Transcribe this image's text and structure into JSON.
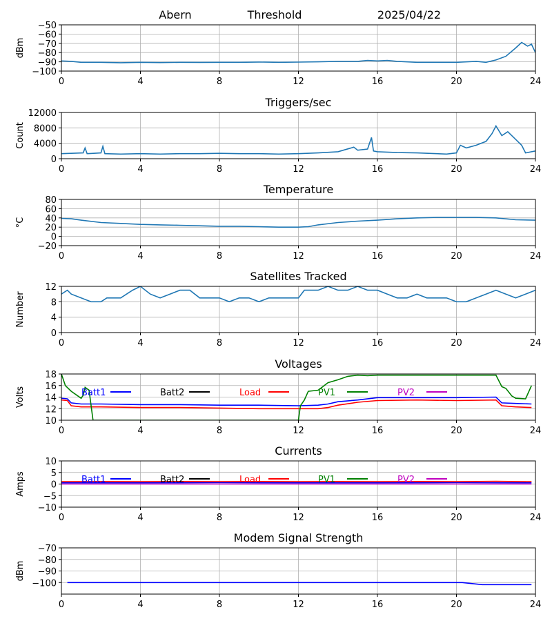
{
  "header": {
    "station": "Abern",
    "label": "Threshold",
    "date": "2025/04/22"
  },
  "chart_data": [
    {
      "type": "line",
      "title": "",
      "ylabel": "dBm",
      "xlim": [
        0,
        24
      ],
      "ylim": [
        -100,
        -50
      ],
      "xticks": [
        0,
        4,
        8,
        12,
        16,
        20,
        24
      ],
      "yticks": [
        -100,
        -90,
        -80,
        -70,
        -60,
        -50
      ],
      "grid": true,
      "series": [
        {
          "color": "#1f77b4",
          "x": [
            0,
            0.5,
            1,
            2,
            3,
            4,
            5,
            6,
            7,
            8,
            9,
            10,
            11,
            12,
            13,
            14,
            15,
            15.5,
            16,
            16.5,
            17,
            18,
            19,
            20,
            21,
            21.5,
            22,
            22.5,
            23,
            23.3,
            23.6,
            23.8,
            24
          ],
          "y": [
            -89,
            -89.5,
            -90.5,
            -90.5,
            -91,
            -90.5,
            -90.8,
            -90.5,
            -90.6,
            -90.5,
            -90.5,
            -90.2,
            -90.5,
            -90.3,
            -90,
            -89.5,
            -89.5,
            -88.5,
            -89,
            -88.5,
            -89.5,
            -90.5,
            -90.5,
            -90.5,
            -89.5,
            -90.5,
            -88,
            -84,
            -75,
            -69,
            -73,
            -71,
            -80
          ]
        }
      ]
    },
    {
      "type": "line",
      "title": "Triggers/sec",
      "ylabel": "Count",
      "xlim": [
        0,
        24
      ],
      "ylim": [
        0,
        12000
      ],
      "xticks": [
        0,
        4,
        8,
        12,
        16,
        20,
        24
      ],
      "yticks": [
        0,
        4000,
        8000,
        12000
      ],
      "grid": true,
      "series": [
        {
          "color": "#1f77b4",
          "x": [
            0,
            0.5,
            1.1,
            1.2,
            1.3,
            2,
            2.1,
            2.2,
            3,
            4,
            5,
            6,
            7,
            8,
            9,
            10,
            11,
            12,
            13,
            14,
            14.8,
            15,
            15.5,
            15.7,
            15.8,
            16,
            17,
            18,
            19,
            19.5,
            20,
            20.2,
            20.5,
            21,
            21.5,
            21.8,
            22,
            22.3,
            22.6,
            23,
            23.3,
            23.5,
            24
          ],
          "y": [
            1300,
            1400,
            1500,
            2800,
            1300,
            1500,
            3200,
            1300,
            1200,
            1300,
            1200,
            1300,
            1300,
            1400,
            1300,
            1300,
            1200,
            1300,
            1500,
            1800,
            3000,
            2200,
            2500,
            5500,
            2000,
            1800,
            1600,
            1500,
            1300,
            1200,
            1500,
            3500,
            2800,
            3500,
            4500,
            6500,
            8500,
            6000,
            7000,
            5000,
            3500,
            1500,
            2000
          ]
        }
      ]
    },
    {
      "type": "line",
      "title": "Temperature",
      "ylabel": "°C",
      "xlim": [
        0,
        24
      ],
      "ylim": [
        -20,
        80
      ],
      "xticks": [
        0,
        4,
        8,
        12,
        16,
        20,
        24
      ],
      "yticks": [
        -20,
        0,
        20,
        40,
        60,
        80
      ],
      "grid": true,
      "series": [
        {
          "color": "#1f77b4",
          "x": [
            0,
            0.5,
            1,
            2,
            3,
            4,
            5,
            6,
            7,
            8,
            9,
            10,
            11,
            12,
            12.5,
            13,
            14,
            15,
            16,
            17,
            18,
            19,
            20,
            21,
            22,
            23,
            24
          ],
          "y": [
            39,
            38,
            35,
            30,
            28,
            26,
            25,
            24,
            23,
            22,
            22,
            21,
            20,
            20,
            21,
            25,
            30,
            33,
            35,
            38,
            40,
            41,
            41,
            41,
            40,
            36,
            35
          ]
        }
      ]
    },
    {
      "type": "line",
      "title": "Satellites Tracked",
      "ylabel": "Number",
      "xlim": [
        0,
        24
      ],
      "ylim": [
        0,
        12
      ],
      "xticks": [
        0,
        4,
        8,
        12,
        16,
        20,
        24
      ],
      "yticks": [
        0,
        4,
        8,
        12
      ],
      "grid": true,
      "series": [
        {
          "color": "#1f77b4",
          "x": [
            0,
            0.3,
            0.5,
            1,
            1.5,
            2,
            2.3,
            3,
            3.3,
            3.6,
            4,
            4.5,
            5,
            5.5,
            6,
            6.5,
            7,
            7.5,
            8,
            8.5,
            9,
            9.5,
            10,
            10.5,
            11,
            11.5,
            12,
            12.3,
            13,
            13.5,
            14,
            14.5,
            15,
            15.5,
            16,
            16.5,
            17,
            17.5,
            18,
            18.5,
            19,
            19.5,
            20,
            20.5,
            21,
            21.5,
            22,
            22.5,
            23,
            23.5,
            24
          ],
          "y": [
            10,
            11,
            10,
            9,
            8,
            8,
            9,
            9,
            10,
            11,
            12,
            10,
            9,
            10,
            11,
            11,
            9,
            9,
            9,
            8,
            9,
            9,
            8,
            9,
            9,
            9,
            9,
            11,
            11,
            12,
            11,
            11,
            12,
            11,
            11,
            10,
            9,
            9,
            10,
            9,
            9,
            9,
            8,
            8,
            9,
            10,
            11,
            10,
            9,
            10,
            11
          ]
        }
      ]
    },
    {
      "type": "line",
      "title": "Voltages",
      "ylabel": "Volts",
      "xlim": [
        0,
        24
      ],
      "ylim": [
        10,
        18
      ],
      "xticks": [
        0,
        4,
        8,
        12,
        16,
        20,
        24
      ],
      "yticks": [
        10,
        12,
        14,
        16,
        18
      ],
      "grid": true,
      "legend": "top",
      "series": [
        {
          "name": "Batt1",
          "color": "#0000ff",
          "x": [
            0,
            0.3,
            0.5,
            1,
            2,
            4,
            6,
            8,
            10,
            12,
            13,
            13.5,
            14,
            15,
            16,
            18,
            20,
            22,
            22.3,
            23,
            23.8
          ],
          "y": [
            13.8,
            13.7,
            13.0,
            12.8,
            12.8,
            12.7,
            12.7,
            12.6,
            12.6,
            12.5,
            12.6,
            12.8,
            13.2,
            13.5,
            13.9,
            13.9,
            13.9,
            14.0,
            13.0,
            12.9,
            12.8
          ]
        },
        {
          "name": "Batt2",
          "color": "#000000",
          "x": [],
          "y": []
        },
        {
          "name": "Load",
          "color": "#ff0000",
          "x": [
            0,
            0.3,
            0.5,
            1,
            2,
            4,
            6,
            8,
            10,
            12,
            13,
            13.5,
            14,
            15,
            16,
            18,
            20,
            22,
            22.3,
            23,
            23.8
          ],
          "y": [
            13.5,
            13.4,
            12.5,
            12.3,
            12.3,
            12.2,
            12.2,
            12.1,
            12.0,
            12.0,
            12.0,
            12.2,
            12.6,
            13.1,
            13.4,
            13.5,
            13.4,
            13.5,
            12.5,
            12.3,
            12.2
          ]
        },
        {
          "name": "PV1",
          "color": "#008000",
          "x": [
            0,
            0.2,
            0.5,
            1,
            1.1,
            1.2,
            1.4,
            1.6,
            12,
            12.1,
            12.3,
            12.5,
            13,
            13.5,
            14,
            14.5,
            15,
            15.5,
            16,
            22,
            22.3,
            22.5,
            22.8,
            23,
            23.5,
            23.8
          ],
          "y": [
            18,
            16,
            15,
            13.8,
            14.3,
            15.7,
            15.2,
            10,
            10,
            12.5,
            13.5,
            15.0,
            15.2,
            16.5,
            17.0,
            17.6,
            17.8,
            17.7,
            17.8,
            17.8,
            15.8,
            15.5,
            14.2,
            13.8,
            13.7,
            16.0
          ]
        },
        {
          "name": "PV2",
          "color": "#bf00bf",
          "x": [],
          "y": []
        }
      ]
    },
    {
      "type": "line",
      "title": "Currents",
      "ylabel": "Amps",
      "xlim": [
        0,
        24
      ],
      "ylim": [
        -10,
        10
      ],
      "xticks": [
        0,
        4,
        8,
        12,
        16,
        20,
        24
      ],
      "yticks": [
        -10,
        -5,
        0,
        5,
        10
      ],
      "grid": true,
      "legend": "top",
      "series": [
        {
          "name": "Batt1",
          "color": "#0000ff",
          "x": [
            0,
            4,
            8,
            12,
            16,
            20,
            23.8
          ],
          "y": [
            0.5,
            0.5,
            0.6,
            0.5,
            0.5,
            0.6,
            0.5
          ]
        },
        {
          "name": "Batt2",
          "color": "#000000",
          "x": [],
          "y": []
        },
        {
          "name": "Load",
          "color": "#ff0000",
          "x": [
            0,
            2,
            4,
            6,
            8,
            10,
            12,
            14,
            16,
            18,
            20,
            22,
            23.8
          ],
          "y": [
            1.0,
            1.1,
            1.0,
            1.1,
            1.0,
            1.1,
            1.0,
            1.1,
            1.0,
            1.1,
            1.0,
            1.2,
            1.0
          ]
        },
        {
          "name": "PV1",
          "color": "#008000",
          "x": [],
          "y": []
        },
        {
          "name": "PV2",
          "color": "#bf00bf",
          "x": [
            0,
            4,
            8,
            12,
            16,
            20,
            23.8
          ],
          "y": [
            0,
            0,
            0,
            0,
            0,
            0,
            0
          ]
        }
      ]
    },
    {
      "type": "line",
      "title": "Modem Signal Strength",
      "ylabel": "dBm",
      "xlim": [
        0,
        24
      ],
      "ylim": [
        -110,
        -70
      ],
      "xticks": [
        0,
        4,
        8,
        12,
        16,
        20,
        24
      ],
      "yticks": [
        -100,
        -90,
        -80,
        -70
      ],
      "grid": true,
      "series": [
        {
          "color": "#0000ff",
          "x": [
            0.3,
            20.3,
            21.3,
            23.8
          ],
          "y": [
            -100,
            -100,
            -101.8,
            -101.8
          ]
        }
      ]
    }
  ]
}
